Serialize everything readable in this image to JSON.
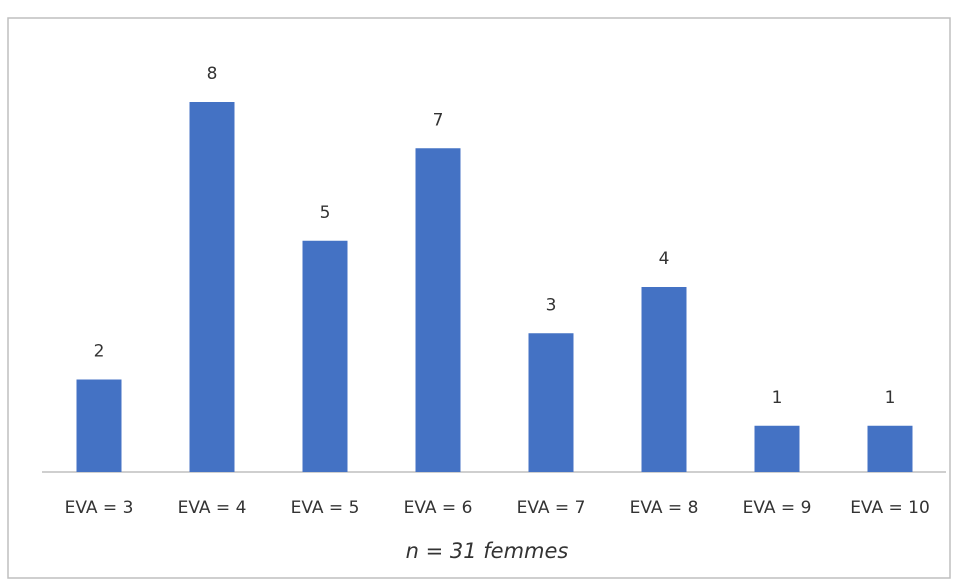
{
  "chart_data": {
    "type": "bar",
    "categories": [
      "EVA = 3",
      "EVA = 4",
      "EVA = 5",
      "EVA = 6",
      "EVA = 7",
      "EVA = 8",
      "EVA = 9",
      "EVA = 10"
    ],
    "values": [
      2,
      8,
      5,
      7,
      3,
      4,
      1,
      1
    ],
    "color": "#4472c4",
    "x_label": "n = 31 femmes",
    "ylim": [
      0,
      8
    ]
  }
}
